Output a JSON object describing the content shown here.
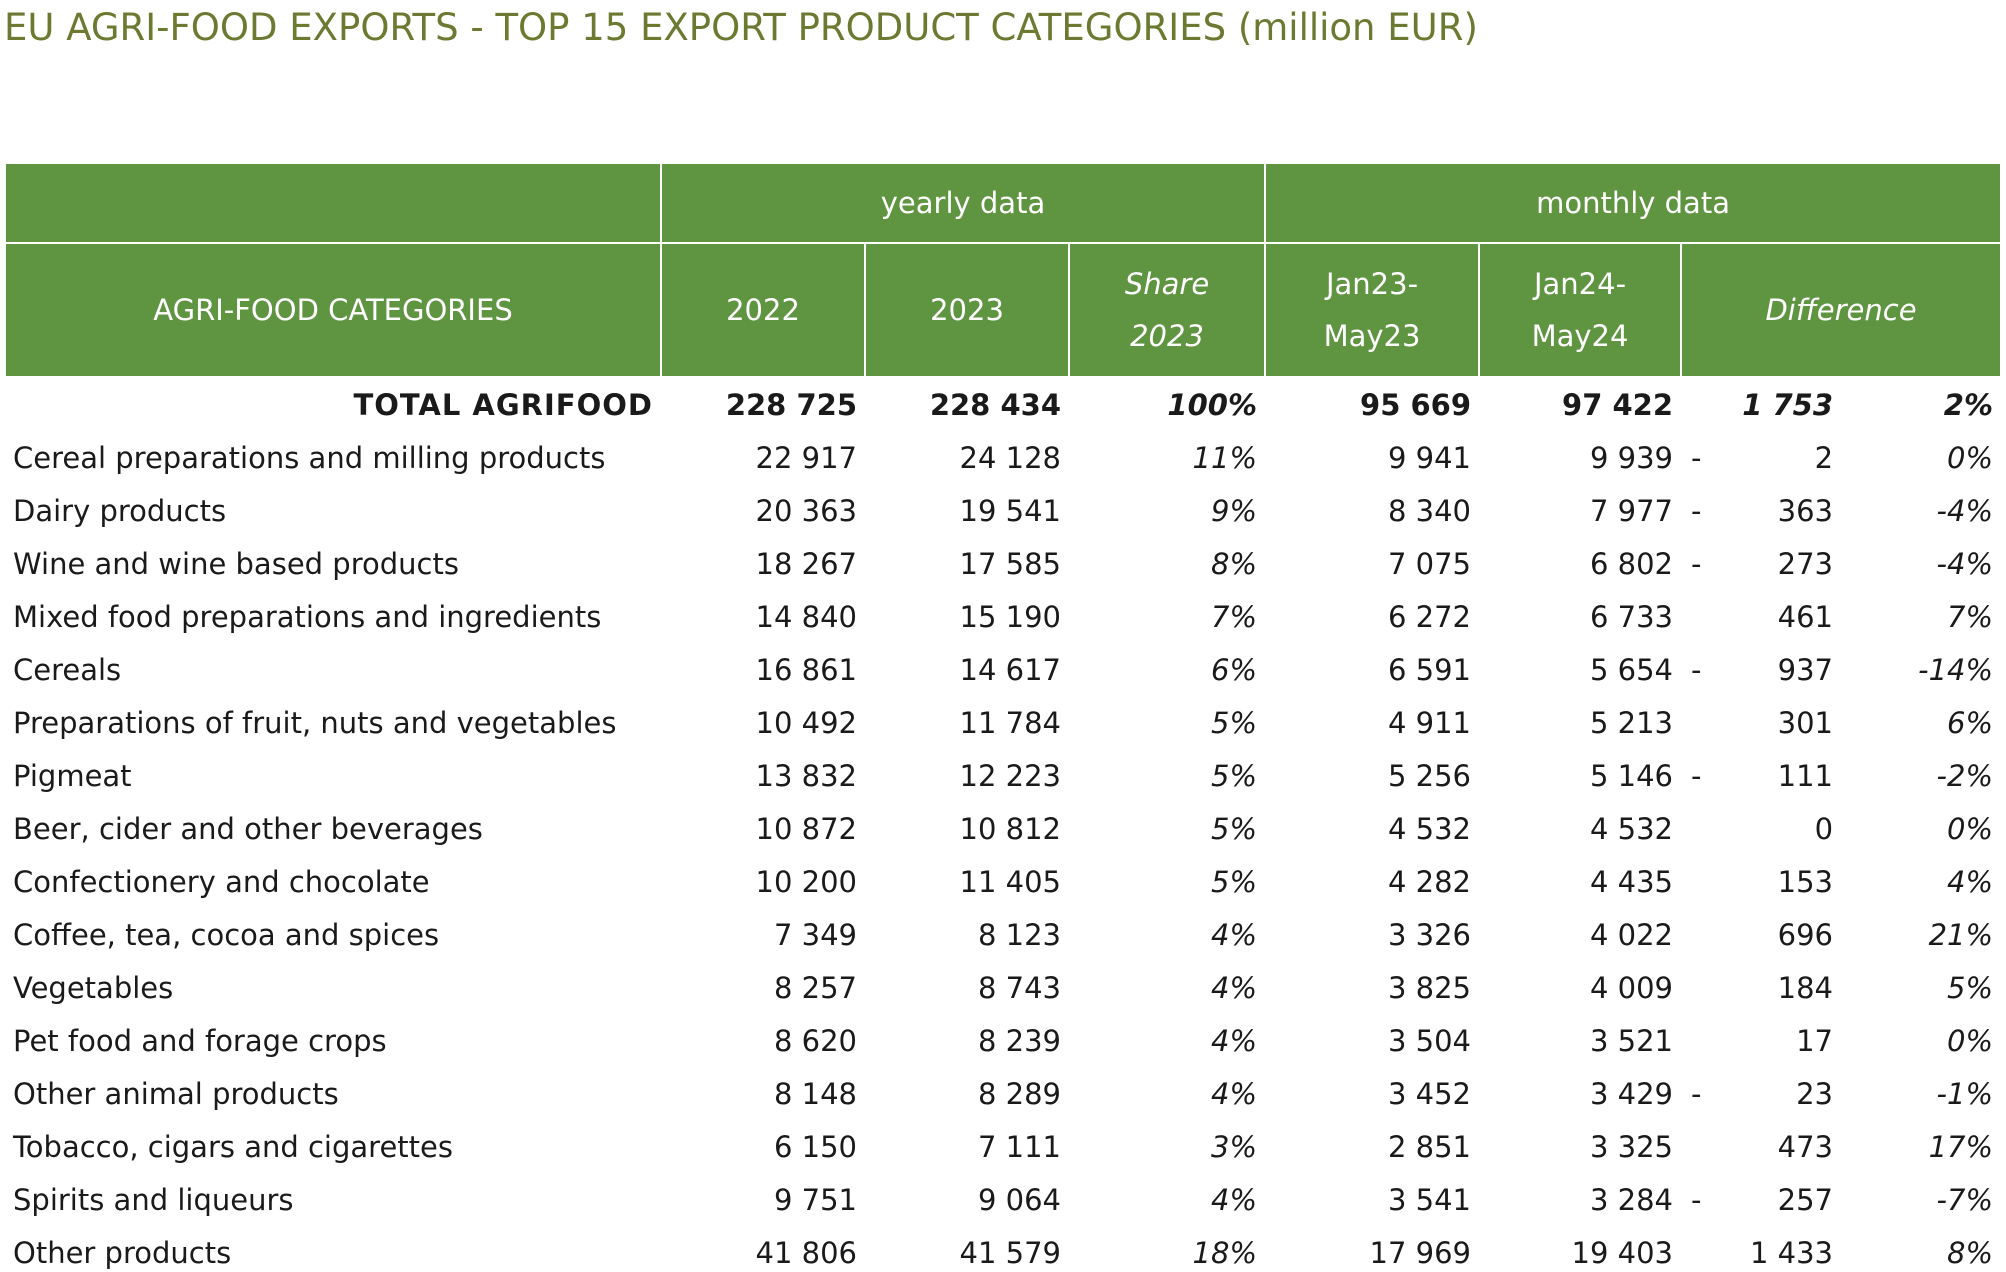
{
  "title": "EU AGRI-FOOD EXPORTS - TOP 15 EXPORT PRODUCT CATEGORIES (million EUR)",
  "colors": {
    "header_bg": "#5f9441",
    "header_text": "#ffffff",
    "title": "#6b7a30"
  },
  "header": {
    "yearly_group": "yearly data",
    "monthly_group": "monthly data",
    "category": "AGRI-FOOD CATEGORIES",
    "y2022": "2022",
    "y2023": "2023",
    "share_line1": "Share",
    "share_line2": "2023",
    "m1_line1": "Jan23-",
    "m1_line2": "May23",
    "m2_line1": "Jan24-",
    "m2_line2": "May24",
    "difference": "Difference"
  },
  "chart_data": {
    "type": "table",
    "title": "EU AGRI-FOOD EXPORTS - TOP 15 EXPORT PRODUCT CATEGORIES (million EUR)",
    "columns": [
      "AGRI-FOOD CATEGORIES",
      "2022",
      "2023",
      "Share 2023",
      "Jan23-May23",
      "Jan24-May24",
      "Difference",
      "Difference %"
    ],
    "rows": [
      {
        "category": "TOTAL AGRIFOOD",
        "y2022": "228 725",
        "y2023": "228 434",
        "share": "100%",
        "m1": "95 669",
        "m2": "97 422",
        "diff_sign": "",
        "diff": "1 753",
        "diff_pct": "2%"
      },
      {
        "category": "Cereal preparations and milling products",
        "y2022": "22 917",
        "y2023": "24 128",
        "share": "11%",
        "m1": "9 941",
        "m2": "9 939",
        "diff_sign": "-",
        "diff": "2",
        "diff_pct": "0%"
      },
      {
        "category": "Dairy products",
        "y2022": "20 363",
        "y2023": "19 541",
        "share": "9%",
        "m1": "8 340",
        "m2": "7 977",
        "diff_sign": "-",
        "diff": "363",
        "diff_pct": "-4%"
      },
      {
        "category": "Wine and wine based products",
        "y2022": "18 267",
        "y2023": "17 585",
        "share": "8%",
        "m1": "7 075",
        "m2": "6 802",
        "diff_sign": "-",
        "diff": "273",
        "diff_pct": "-4%"
      },
      {
        "category": "Mixed food preparations and ingredients",
        "y2022": "14 840",
        "y2023": "15 190",
        "share": "7%",
        "m1": "6 272",
        "m2": "6 733",
        "diff_sign": "",
        "diff": "461",
        "diff_pct": "7%"
      },
      {
        "category": "Cereals",
        "y2022": "16 861",
        "y2023": "14 617",
        "share": "6%",
        "m1": "6 591",
        "m2": "5 654",
        "diff_sign": "-",
        "diff": "937",
        "diff_pct": "-14%"
      },
      {
        "category": "Preparations of fruit, nuts and vegetables",
        "y2022": "10 492",
        "y2023": "11 784",
        "share": "5%",
        "m1": "4 911",
        "m2": "5 213",
        "diff_sign": "",
        "diff": "301",
        "diff_pct": "6%"
      },
      {
        "category": "Pigmeat",
        "y2022": "13 832",
        "y2023": "12 223",
        "share": "5%",
        "m1": "5 256",
        "m2": "5 146",
        "diff_sign": "-",
        "diff": "111",
        "diff_pct": "-2%"
      },
      {
        "category": "Beer, cider and other beverages",
        "y2022": "10 872",
        "y2023": "10 812",
        "share": "5%",
        "m1": "4 532",
        "m2": "4 532",
        "diff_sign": "",
        "diff": "0",
        "diff_pct": "0%"
      },
      {
        "category": "Confectionery and chocolate",
        "y2022": "10 200",
        "y2023": "11 405",
        "share": "5%",
        "m1": "4 282",
        "m2": "4 435",
        "diff_sign": "",
        "diff": "153",
        "diff_pct": "4%"
      },
      {
        "category": "Coffee, tea, cocoa and spices",
        "y2022": "7 349",
        "y2023": "8 123",
        "share": "4%",
        "m1": "3 326",
        "m2": "4 022",
        "diff_sign": "",
        "diff": "696",
        "diff_pct": "21%"
      },
      {
        "category": "Vegetables",
        "y2022": "8 257",
        "y2023": "8 743",
        "share": "4%",
        "m1": "3 825",
        "m2": "4 009",
        "diff_sign": "",
        "diff": "184",
        "diff_pct": "5%"
      },
      {
        "category": "Pet food and forage crops",
        "y2022": "8 620",
        "y2023": "8 239",
        "share": "4%",
        "m1": "3 504",
        "m2": "3 521",
        "diff_sign": "",
        "diff": "17",
        "diff_pct": "0%"
      },
      {
        "category": "Other animal products",
        "y2022": "8 148",
        "y2023": "8 289",
        "share": "4%",
        "m1": "3 452",
        "m2": "3 429",
        "diff_sign": "-",
        "diff": "23",
        "diff_pct": "-1%"
      },
      {
        "category": "Tobacco, cigars and cigarettes",
        "y2022": "6 150",
        "y2023": "7 111",
        "share": "3%",
        "m1": "2 851",
        "m2": "3 325",
        "diff_sign": "",
        "diff": "473",
        "diff_pct": "17%"
      },
      {
        "category": "Spirits and liqueurs",
        "y2022": "9 751",
        "y2023": "9 064",
        "share": "4%",
        "m1": "3 541",
        "m2": "3 284",
        "diff_sign": "-",
        "diff": "257",
        "diff_pct": "-7%"
      },
      {
        "category": "Other products",
        "y2022": "41 806",
        "y2023": "41 579",
        "share": "18%",
        "m1": "17 969",
        "m2": "19 403",
        "diff_sign": "",
        "diff": "1 433",
        "diff_pct": "8%"
      }
    ]
  }
}
